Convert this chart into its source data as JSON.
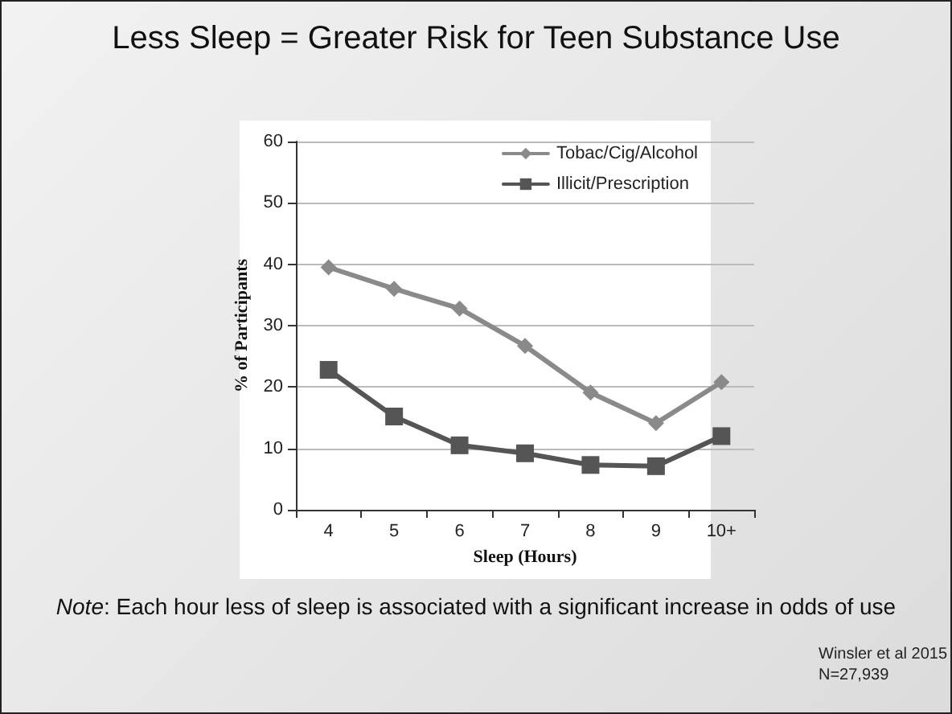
{
  "chart_data": {
    "type": "line",
    "title": "Less Sleep = Greater Risk for Teen Substance Use",
    "categories": [
      "4",
      "5",
      "6",
      "7",
      "8",
      "9",
      "10+"
    ],
    "series": [
      {
        "name": "Tobac/Cig/Alcohol",
        "color": "#8a8a8a",
        "marker": "diamond",
        "values": [
          39.5,
          36,
          32.8,
          26.7,
          19.1,
          14.1,
          20.8
        ]
      },
      {
        "name": "Illicit/Prescription",
        "color": "#555555",
        "marker": "square",
        "values": [
          22.8,
          15.2,
          10.5,
          9.2,
          7.3,
          7.1,
          12
        ]
      }
    ],
    "xlabel": "Sleep (Hours)",
    "ylabel": "% of Participants",
    "ylim": [
      0,
      60
    ],
    "yticks": [
      0,
      10,
      20,
      30,
      40,
      50,
      60
    ],
    "grid": "y",
    "legend": "top right",
    "line_style": "solid",
    "annotations": [
      "Note: Each hour less of sleep is associated with a significant increase in odds of use",
      "Winsler et al 2015",
      "N=27,939"
    ]
  }
}
